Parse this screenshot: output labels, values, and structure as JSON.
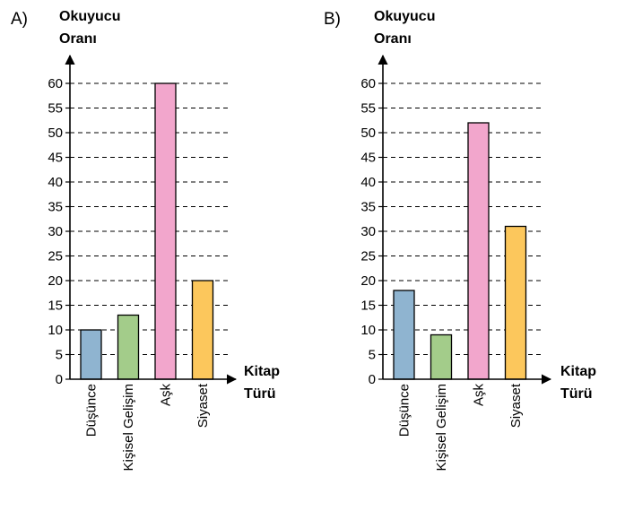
{
  "chart_data": [
    {
      "type": "bar",
      "panel_label": "A)",
      "ylabel_lines": [
        "Okuyucu",
        "Oranı"
      ],
      "xlabel_lines": [
        "Kitap",
        "Türü"
      ],
      "categories": [
        "Düşünce",
        "Kişisel Gelişim",
        "Aşk",
        "Siyaset"
      ],
      "values": [
        10,
        13,
        60,
        20
      ],
      "colors": [
        "#8fb4d0",
        "#a3cc8a",
        "#f2a6cc",
        "#fcc75c"
      ],
      "ylim": [
        0,
        60
      ],
      "yticks": [
        0,
        5,
        10,
        15,
        20,
        25,
        30,
        35,
        40,
        45,
        50,
        55,
        60
      ],
      "grid": "dashed-horizontal"
    },
    {
      "type": "bar",
      "panel_label": "B)",
      "ylabel_lines": [
        "Okuyucu",
        "Oranı"
      ],
      "xlabel_lines": [
        "Kitap",
        "Türü"
      ],
      "categories": [
        "Düşünce",
        "Kişisel Gelişim",
        "Aşk",
        "Siyaset"
      ],
      "values": [
        18,
        9,
        52,
        31
      ],
      "colors": [
        "#8fb4d0",
        "#a3cc8a",
        "#f2a6cc",
        "#fcc75c"
      ],
      "ylim": [
        0,
        60
      ],
      "yticks": [
        0,
        5,
        10,
        15,
        20,
        25,
        30,
        35,
        40,
        45,
        50,
        55,
        60
      ],
      "grid": "dashed-horizontal"
    }
  ]
}
